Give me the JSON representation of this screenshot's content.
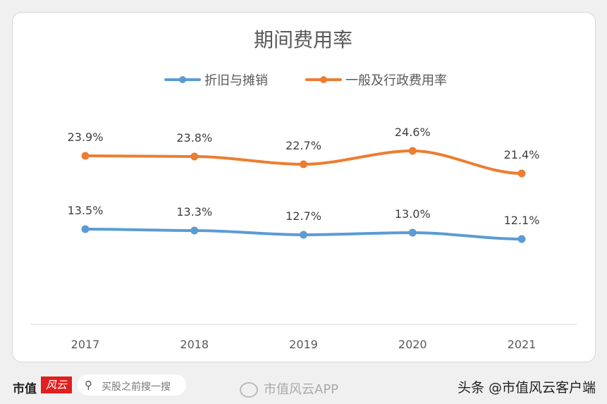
{
  "chart_data": {
    "type": "line",
    "title": "期间费用率",
    "categories": [
      "2017",
      "2018",
      "2019",
      "2020",
      "2021"
    ],
    "series": [
      {
        "name": "折旧与摊销",
        "values": [
          13.5,
          13.3,
          12.7,
          13.0,
          12.1
        ],
        "labels": [
          "13.5%",
          "13.3%",
          "12.7%",
          "13.0%",
          "12.1%"
        ],
        "color": "#5b9bd5"
      },
      {
        "name": "一般及行政费用率",
        "values": [
          23.9,
          23.8,
          22.7,
          24.6,
          21.4
        ],
        "labels": [
          "23.9%",
          "23.8%",
          "22.7%",
          "24.6%",
          "21.4%"
        ],
        "color": "#ed7d31"
      }
    ],
    "ylim": [
      0,
      30
    ],
    "grid": false,
    "legend": "top",
    "xlabel": "",
    "ylabel": ""
  },
  "footer": {
    "brand": "市值",
    "brand_logo": "风云",
    "search_placeholder": "买股之前搜一搜",
    "weibo_text": "市值风云APP",
    "toutiao_text": "头条 @市值风云客户端"
  }
}
